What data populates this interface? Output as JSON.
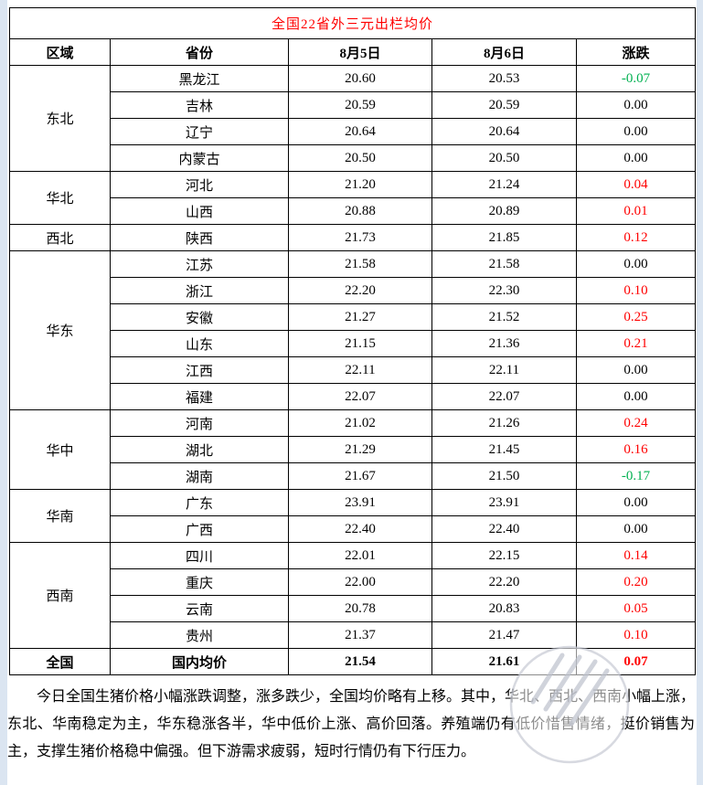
{
  "colors": {
    "title": "#ff0000",
    "up": "#ff0000",
    "down": "#00b050",
    "flat": "#000000",
    "page_background": "#dbe5f1",
    "panel_background": "#ffffff",
    "border": "#000000"
  },
  "table": {
    "title": "全国22省外三元出栏均价",
    "columns": [
      "区域",
      "省份",
      "8月5日",
      "8月6日",
      "涨跌"
    ],
    "regions": [
      {
        "name": "东北",
        "rows": [
          {
            "province": "黑龙江",
            "aug5": "20.60",
            "aug6": "20.53",
            "change": "-0.07",
            "trend": "down"
          },
          {
            "province": "吉林",
            "aug5": "20.59",
            "aug6": "20.59",
            "change": "0.00",
            "trend": "flat"
          },
          {
            "province": "辽宁",
            "aug5": "20.64",
            "aug6": "20.64",
            "change": "0.00",
            "trend": "flat"
          },
          {
            "province": "内蒙古",
            "aug5": "20.50",
            "aug6": "20.50",
            "change": "0.00",
            "trend": "flat"
          }
        ]
      },
      {
        "name": "华北",
        "rows": [
          {
            "province": "河北",
            "aug5": "21.20",
            "aug6": "21.24",
            "change": "0.04",
            "trend": "up"
          },
          {
            "province": "山西",
            "aug5": "20.88",
            "aug6": "20.89",
            "change": "0.01",
            "trend": "up"
          }
        ]
      },
      {
        "name": "西北",
        "rows": [
          {
            "province": "陕西",
            "aug5": "21.73",
            "aug6": "21.85",
            "change": "0.12",
            "trend": "up"
          }
        ]
      },
      {
        "name": "华东",
        "rows": [
          {
            "province": "江苏",
            "aug5": "21.58",
            "aug6": "21.58",
            "change": "0.00",
            "trend": "flat"
          },
          {
            "province": "浙江",
            "aug5": "22.20",
            "aug6": "22.30",
            "change": "0.10",
            "trend": "up"
          },
          {
            "province": "安徽",
            "aug5": "21.27",
            "aug6": "21.52",
            "change": "0.25",
            "trend": "up"
          },
          {
            "province": "山东",
            "aug5": "21.15",
            "aug6": "21.36",
            "change": "0.21",
            "trend": "up"
          },
          {
            "province": "江西",
            "aug5": "22.11",
            "aug6": "22.11",
            "change": "0.00",
            "trend": "flat"
          },
          {
            "province": "福建",
            "aug5": "22.07",
            "aug6": "22.07",
            "change": "0.00",
            "trend": "flat"
          }
        ]
      },
      {
        "name": "华中",
        "rows": [
          {
            "province": "河南",
            "aug5": "21.02",
            "aug6": "21.26",
            "change": "0.24",
            "trend": "up"
          },
          {
            "province": "湖北",
            "aug5": "21.29",
            "aug6": "21.45",
            "change": "0.16",
            "trend": "up"
          },
          {
            "province": "湖南",
            "aug5": "21.67",
            "aug6": "21.50",
            "change": "-0.17",
            "trend": "down"
          }
        ]
      },
      {
        "name": "华南",
        "rows": [
          {
            "province": "广东",
            "aug5": "23.91",
            "aug6": "23.91",
            "change": "0.00",
            "trend": "flat"
          },
          {
            "province": "广西",
            "aug5": "22.40",
            "aug6": "22.40",
            "change": "0.00",
            "trend": "flat"
          }
        ]
      },
      {
        "name": "西南",
        "rows": [
          {
            "province": "四川",
            "aug5": "22.01",
            "aug6": "22.15",
            "change": "0.14",
            "trend": "up"
          },
          {
            "province": "重庆",
            "aug5": "22.00",
            "aug6": "22.20",
            "change": "0.20",
            "trend": "up"
          },
          {
            "province": "云南",
            "aug5": "20.78",
            "aug6": "20.83",
            "change": "0.05",
            "trend": "up"
          },
          {
            "province": "贵州",
            "aug5": "21.37",
            "aug6": "21.47",
            "change": "0.10",
            "trend": "up"
          }
        ]
      }
    ],
    "summary": {
      "region": "全国",
      "label": "国内均价",
      "aug5": "21.54",
      "aug6": "21.61",
      "change": "0.07",
      "trend": "up"
    }
  },
  "commentary": "今日全国生猪价格小幅涨跌调整，涨多跌少，全国均价略有上移。其中，华北、西北、西南小幅上涨，东北、华南稳定为主，华东稳涨各半，华中低价上涨、高价回落。养殖端仍有低价惜售情绪，挺价销售为主，支撑生猪价格稳中偏强。但下游需求疲弱，短时行情仍有下行压力。"
}
